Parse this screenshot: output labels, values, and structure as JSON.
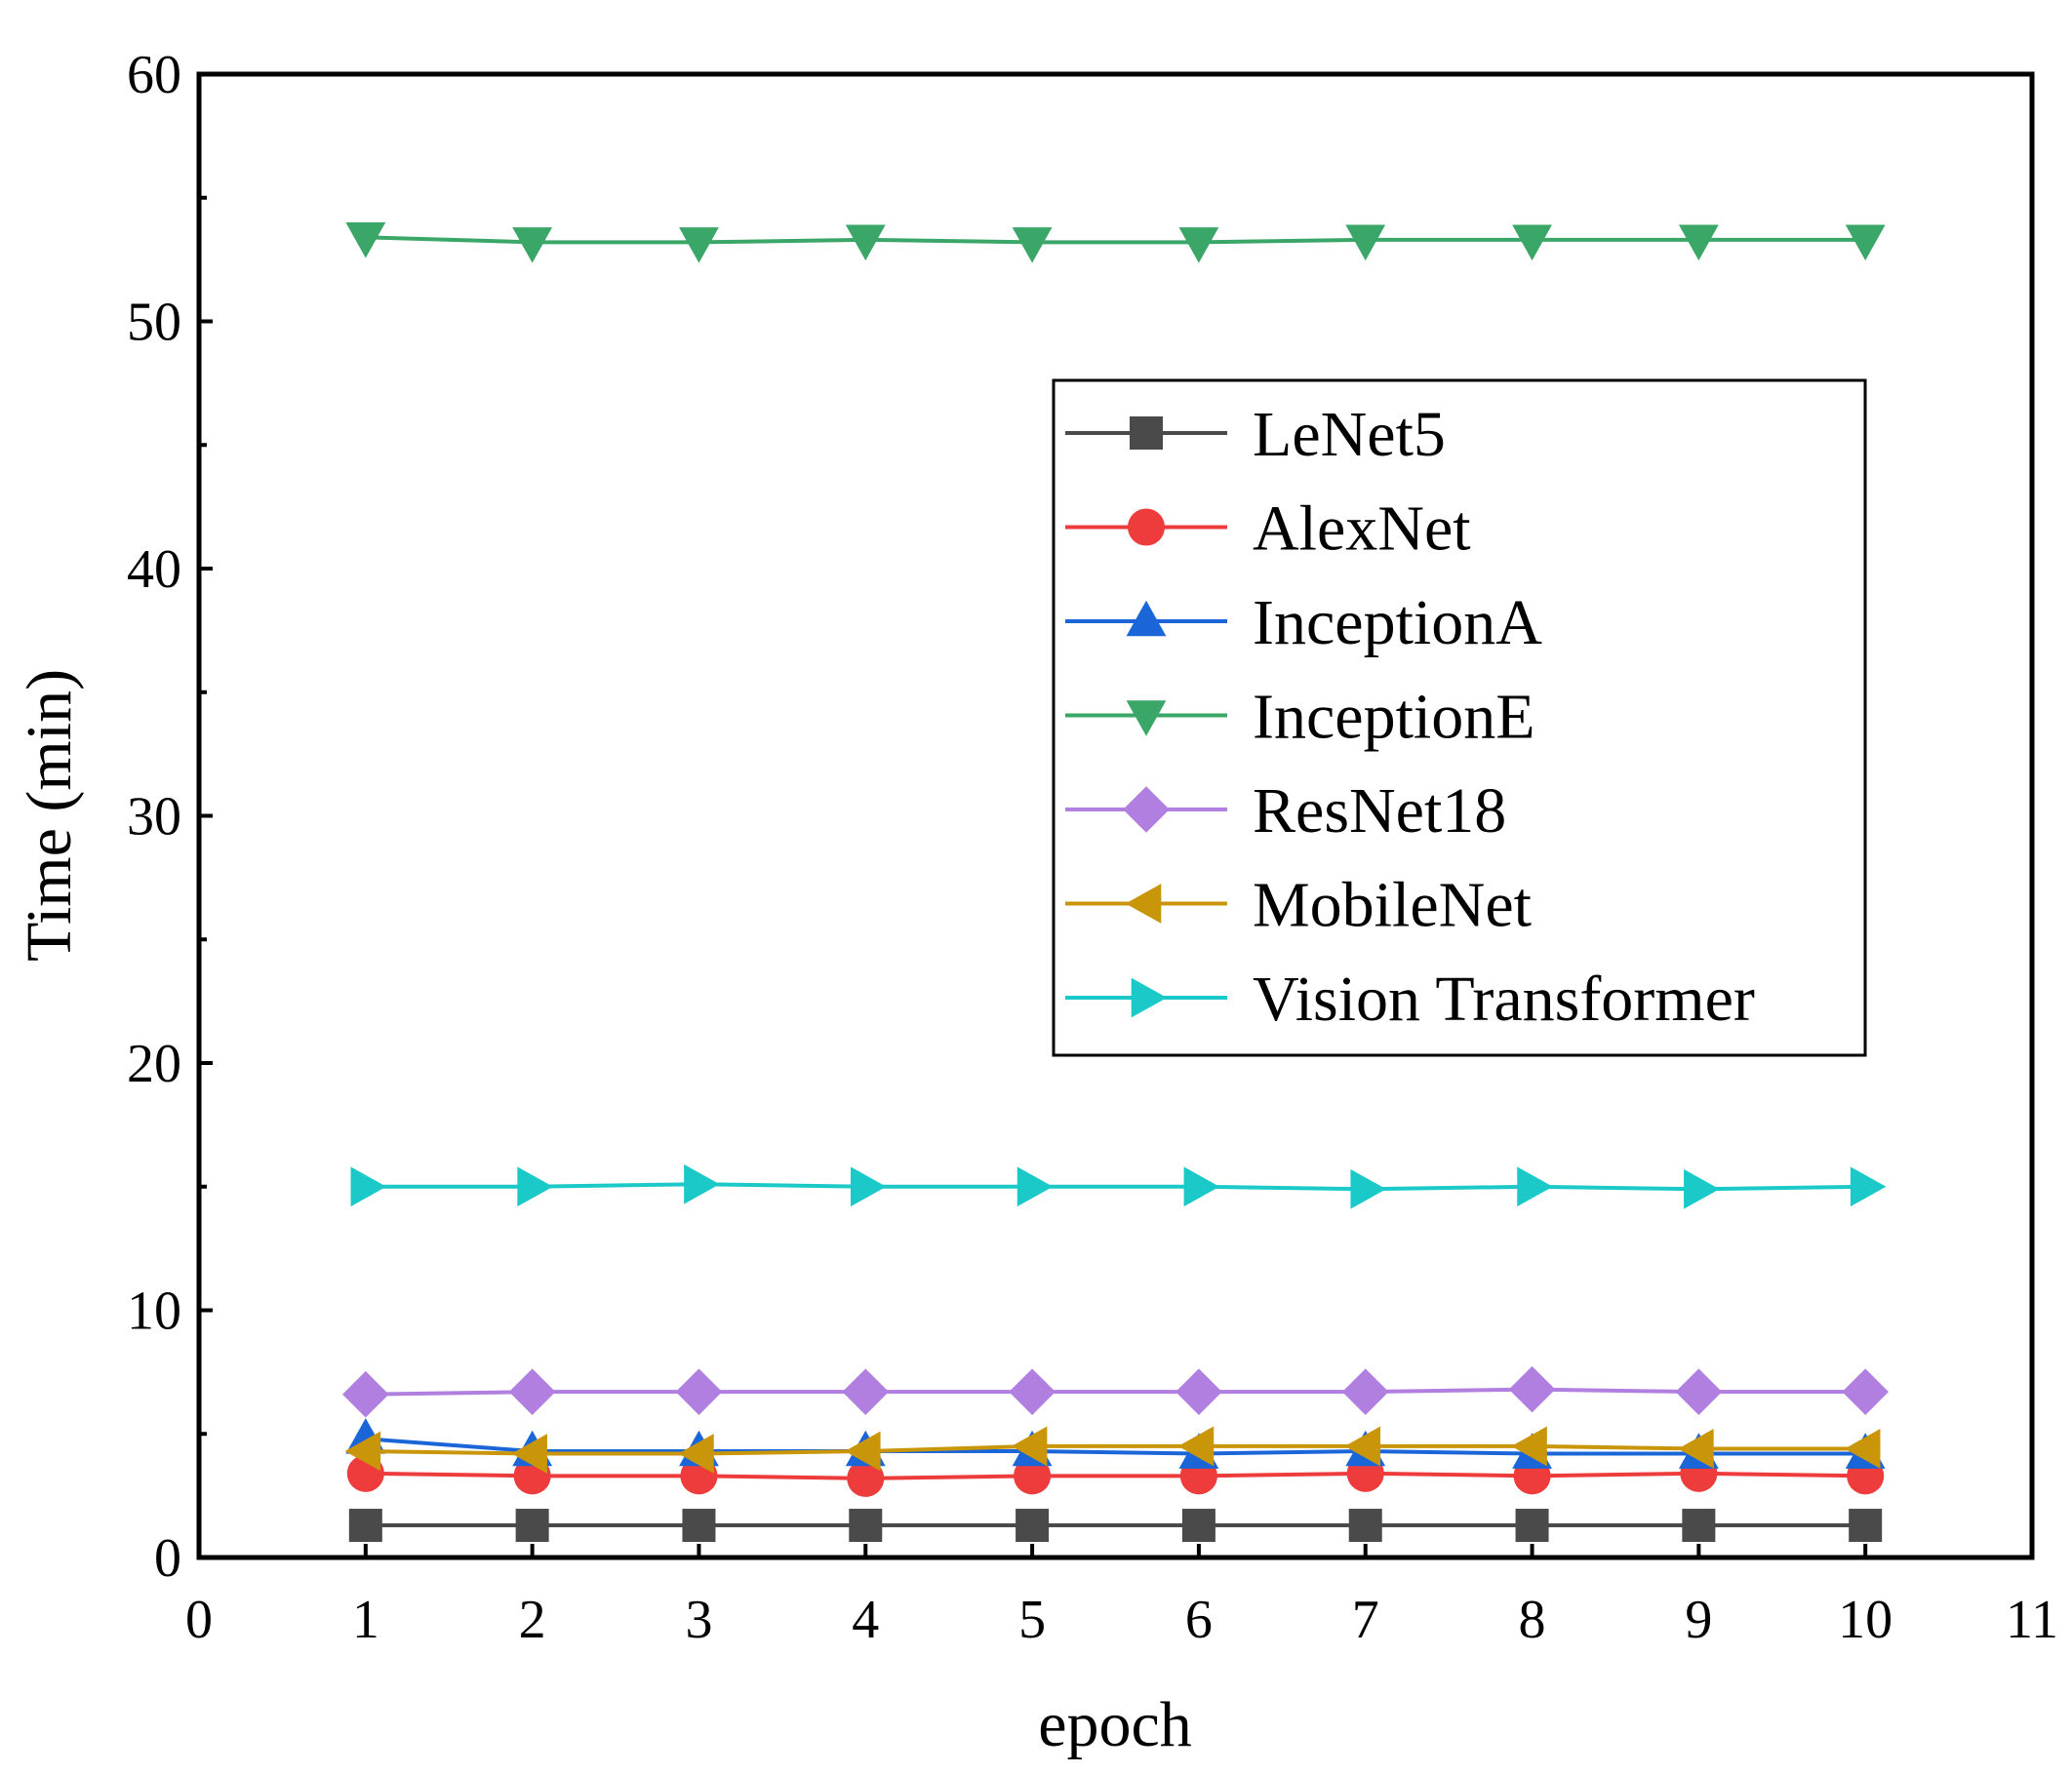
{
  "chart_data": {
    "type": "line",
    "title": "",
    "xlabel": "epoch",
    "ylabel": "Time (min)",
    "xlim": [
      0,
      11
    ],
    "ylim": [
      0,
      60
    ],
    "x_ticks": [
      0,
      1,
      2,
      3,
      4,
      5,
      6,
      7,
      8,
      9,
      10,
      11
    ],
    "y_ticks": [
      0,
      10,
      20,
      30,
      40,
      50,
      60
    ],
    "grid": false,
    "legend_position": "upper-right",
    "x": [
      1,
      2,
      3,
      4,
      5,
      6,
      7,
      8,
      9,
      10
    ],
    "series": [
      {
        "name": "LeNet5",
        "color": "#4a4a4a",
        "marker": "square",
        "values": [
          1.3,
          1.3,
          1.3,
          1.3,
          1.3,
          1.3,
          1.3,
          1.3,
          1.3,
          1.3
        ]
      },
      {
        "name": "AlexNet",
        "color": "#ee3b3b",
        "marker": "circle",
        "values": [
          3.4,
          3.3,
          3.3,
          3.2,
          3.3,
          3.3,
          3.4,
          3.3,
          3.4,
          3.3
        ]
      },
      {
        "name": "InceptionA",
        "color": "#1a66d9",
        "marker": "triangle-up",
        "values": [
          4.8,
          4.3,
          4.3,
          4.3,
          4.3,
          4.2,
          4.3,
          4.2,
          4.2,
          4.2
        ]
      },
      {
        "name": "InceptionE",
        "color": "#3aa668",
        "marker": "triangle-down",
        "values": [
          53.4,
          53.2,
          53.2,
          53.3,
          53.2,
          53.2,
          53.3,
          53.3,
          53.3,
          53.3
        ]
      },
      {
        "name": "ResNet18",
        "color": "#b07fe0",
        "marker": "diamond",
        "values": [
          6.6,
          6.7,
          6.7,
          6.7,
          6.7,
          6.7,
          6.7,
          6.8,
          6.7,
          6.7
        ]
      },
      {
        "name": "MobileNet",
        "color": "#c9960a",
        "marker": "triangle-left",
        "values": [
          4.3,
          4.2,
          4.2,
          4.3,
          4.5,
          4.5,
          4.5,
          4.5,
          4.4,
          4.4
        ]
      },
      {
        "name": "Vision Transformer",
        "color": "#1cc9c9",
        "marker": "triangle-right",
        "values": [
          15.0,
          15.0,
          15.1,
          15.0,
          15.0,
          15.0,
          14.9,
          15.0,
          14.9,
          15.0
        ]
      }
    ]
  }
}
